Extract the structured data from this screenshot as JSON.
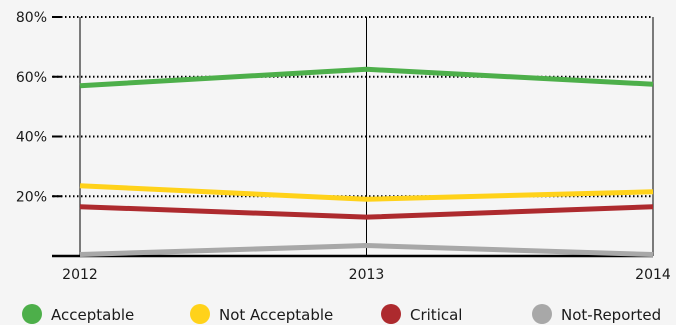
{
  "chart_data": {
    "type": "line",
    "x": [
      "2012",
      "2013",
      "2014"
    ],
    "ylim": [
      0,
      80
    ],
    "y_ticks": [
      20,
      40,
      60,
      80
    ],
    "y_tick_labels": [
      "20%",
      "40%",
      "60%",
      "80%"
    ],
    "grid": true,
    "legend_position": "bottom",
    "series": [
      {
        "name": "Acceptable",
        "values": [
          57,
          62.5,
          57.5
        ],
        "color": "#4daf4a"
      },
      {
        "name": "Not Acceptable",
        "values": [
          23.5,
          19,
          21.5
        ],
        "color": "#ffd21a"
      },
      {
        "name": "Critical",
        "values": [
          16.5,
          13,
          16.5
        ],
        "color": "#ad2a2e"
      },
      {
        "name": "Not-Reported",
        "values": [
          0.5,
          3.5,
          0.5
        ],
        "color": "#a8a8a8"
      }
    ]
  }
}
